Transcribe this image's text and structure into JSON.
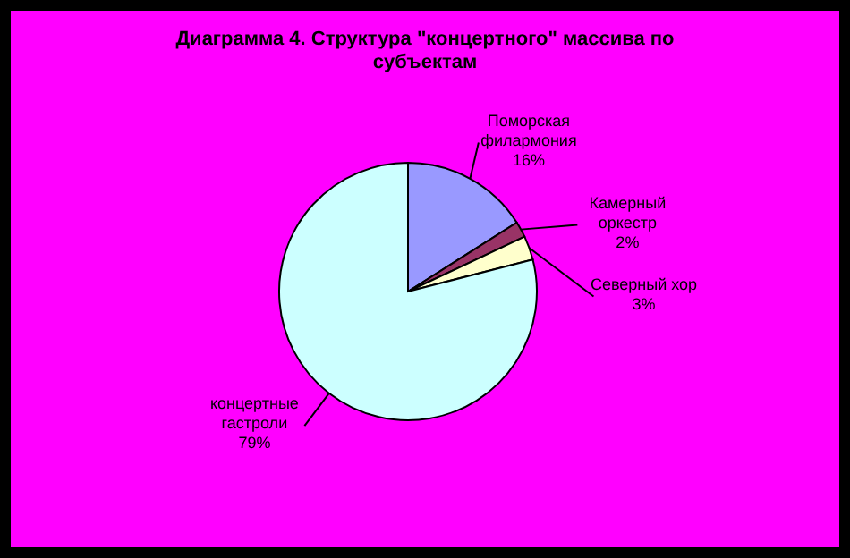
{
  "chart_data": {
    "type": "pie",
    "title": "Диаграмма 4. Структура \"концертного\" массива по субъектам",
    "categories": [
      "Поморская филармония",
      "Камерный оркестр",
      "Северный хор",
      "концертные гастроли"
    ],
    "values": [
      16,
      2,
      3,
      79
    ],
    "colors": [
      "#9999ff",
      "#993366",
      "#ffffcc",
      "#ccffff"
    ],
    "value_labels": [
      "16%",
      "2%",
      "3%",
      "79%"
    ]
  }
}
